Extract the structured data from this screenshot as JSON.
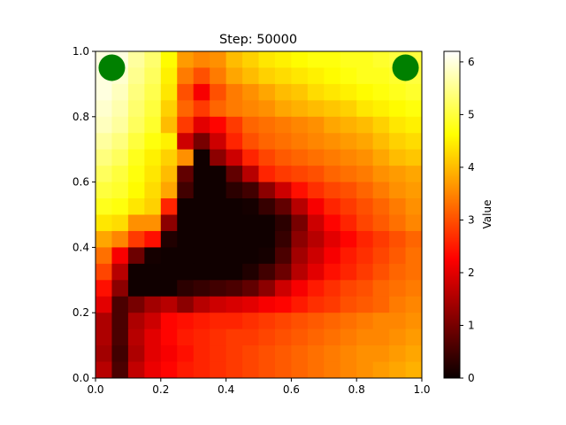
{
  "chart_data": {
    "type": "heatmap",
    "title": "Step: 50000",
    "xlabel": "",
    "ylabel": "",
    "colorbar_label": "Value",
    "colormap": "hot",
    "xlim": [
      0,
      1
    ],
    "ylim": [
      0,
      1
    ],
    "vmin": 0,
    "vmax": 6.2,
    "x_ticks": [
      "0.0",
      "0.2",
      "0.4",
      "0.6",
      "0.8",
      "1.0"
    ],
    "y_ticks": [
      "0.0",
      "0.2",
      "0.4",
      "0.6",
      "0.8",
      "1.0"
    ],
    "colorbar_ticks": [
      "0",
      "1",
      "2",
      "3",
      "4",
      "5",
      "6"
    ],
    "grid_size": [
      20,
      20
    ],
    "markers": [
      {
        "x": 0.05,
        "y": 0.95,
        "color": "#008000"
      },
      {
        "x": 0.95,
        "y": 0.95,
        "color": "#008000"
      }
    ],
    "rows_top_to_bottom": [
      [
        6.0,
        6.0,
        5.6,
        5.3,
        4.6,
        3.7,
        3.5,
        3.6,
        4.0,
        4.2,
        4.4,
        4.5,
        4.6,
        4.7,
        4.7,
        4.8,
        4.8,
        4.9,
        5.0,
        5.0
      ],
      [
        6.0,
        5.9,
        5.5,
        5.2,
        4.5,
        3.4,
        3.0,
        3.4,
        3.8,
        4.0,
        4.2,
        4.3,
        4.4,
        4.5,
        4.6,
        4.7,
        4.8,
        4.8,
        4.9,
        5.0
      ],
      [
        6.0,
        5.8,
        5.4,
        5.1,
        4.4,
        3.0,
        2.2,
        3.0,
        3.4,
        3.6,
        3.8,
        4.0,
        4.1,
        4.3,
        4.4,
        4.5,
        4.6,
        4.7,
        4.8,
        4.9
      ],
      [
        5.9,
        5.7,
        5.3,
        5.0,
        4.2,
        3.2,
        2.8,
        3.2,
        3.4,
        3.5,
        3.6,
        3.8,
        3.9,
        4.0,
        4.1,
        4.2,
        4.4,
        4.5,
        4.6,
        4.7
      ],
      [
        5.8,
        5.6,
        5.2,
        4.9,
        4.0,
        2.8,
        2.0,
        2.3,
        2.8,
        3.2,
        3.3,
        3.4,
        3.5,
        3.6,
        3.8,
        3.9,
        4.0,
        4.2,
        4.4,
        4.5
      ],
      [
        5.6,
        5.4,
        5.0,
        4.7,
        4.5,
        1.8,
        1.0,
        1.8,
        2.6,
        3.0,
        3.2,
        3.3,
        3.4,
        3.5,
        3.6,
        3.7,
        3.8,
        4.0,
        4.2,
        4.3
      ],
      [
        5.4,
        5.2,
        4.8,
        4.5,
        4.2,
        3.6,
        0.05,
        1.2,
        1.8,
        2.6,
        2.9,
        3.1,
        3.2,
        3.3,
        3.4,
        3.5,
        3.6,
        3.8,
        4.0,
        4.1
      ],
      [
        5.2,
        5.0,
        4.7,
        4.4,
        4.0,
        0.8,
        0.05,
        0.05,
        0.8,
        1.6,
        2.6,
        2.8,
        2.9,
        3.0,
        3.2,
        3.3,
        3.4,
        3.6,
        3.7,
        3.8
      ],
      [
        5.0,
        4.9,
        4.6,
        4.3,
        3.8,
        0.5,
        0.05,
        0.05,
        0.3,
        0.5,
        1.2,
        1.8,
        2.4,
        2.7,
        2.9,
        3.0,
        3.2,
        3.4,
        3.6,
        3.7
      ],
      [
        4.8,
        4.7,
        4.4,
        4.2,
        2.6,
        0.05,
        0.05,
        0.05,
        0.05,
        0.1,
        0.4,
        0.8,
        1.6,
        2.2,
        2.6,
        2.8,
        3.0,
        3.2,
        3.4,
        3.6
      ],
      [
        4.4,
        4.3,
        3.6,
        3.6,
        1.2,
        0.05,
        0.05,
        0.05,
        0.05,
        0.05,
        0.05,
        0.3,
        1.0,
        1.8,
        2.3,
        2.6,
        2.9,
        3.1,
        3.3,
        3.5
      ],
      [
        3.8,
        3.5,
        2.8,
        2.4,
        0.2,
        0.05,
        0.05,
        0.05,
        0.05,
        0.05,
        0.05,
        0.4,
        1.2,
        1.6,
        2.0,
        2.3,
        2.6,
        2.8,
        3.0,
        3.2
      ],
      [
        3.3,
        2.2,
        0.9,
        0.1,
        0.05,
        0.05,
        0.05,
        0.05,
        0.05,
        0.05,
        0.1,
        0.6,
        1.4,
        1.8,
        2.2,
        2.5,
        2.7,
        2.9,
        3.1,
        3.3
      ],
      [
        2.9,
        1.6,
        0.05,
        0.05,
        0.05,
        0.05,
        0.05,
        0.05,
        0.05,
        0.2,
        0.5,
        0.9,
        1.6,
        2.0,
        2.4,
        2.6,
        2.8,
        3.0,
        3.2,
        3.3
      ],
      [
        2.4,
        1.2,
        0.05,
        0.05,
        0.05,
        0.3,
        0.4,
        0.5,
        0.6,
        0.8,
        1.2,
        1.8,
        2.2,
        2.5,
        2.7,
        2.9,
        3.0,
        3.2,
        3.3,
        3.4
      ],
      [
        2.0,
        0.6,
        1.0,
        1.4,
        1.6,
        1.2,
        1.6,
        1.8,
        1.9,
        2.0,
        2.2,
        2.3,
        2.5,
        2.7,
        2.8,
        3.0,
        3.1,
        3.2,
        3.4,
        3.5
      ],
      [
        1.5,
        0.6,
        1.5,
        1.8,
        2.3,
        2.4,
        2.5,
        2.6,
        2.6,
        2.7,
        2.8,
        2.9,
        3.0,
        3.1,
        3.2,
        3.3,
        3.4,
        3.5,
        3.5,
        3.6
      ],
      [
        1.5,
        0.6,
        1.6,
        2.0,
        2.3,
        2.5,
        2.6,
        2.7,
        2.8,
        2.8,
        2.9,
        3.0,
        3.1,
        3.2,
        3.3,
        3.4,
        3.5,
        3.5,
        3.6,
        3.7
      ],
      [
        1.4,
        0.5,
        1.5,
        2.0,
        2.2,
        2.4,
        2.6,
        2.7,
        2.8,
        2.9,
        3.0,
        3.1,
        3.2,
        3.3,
        3.4,
        3.5,
        3.6,
        3.6,
        3.7,
        3.8
      ],
      [
        1.6,
        0.6,
        1.7,
        2.1,
        2.3,
        2.5,
        2.6,
        2.7,
        2.8,
        2.9,
        3.0,
        3.1,
        3.2,
        3.3,
        3.4,
        3.5,
        3.6,
        3.7,
        3.8,
        3.9
      ]
    ]
  }
}
